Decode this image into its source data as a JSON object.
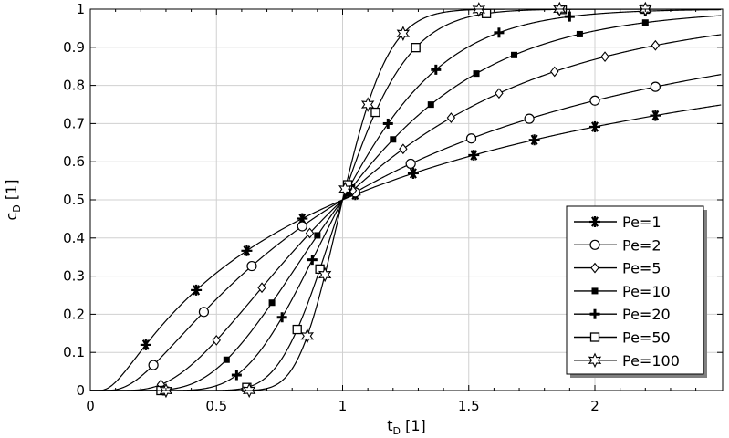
{
  "chart_data": {
    "type": "line",
    "xlabel": "t",
    "xlabel_sub": "D",
    "xlabel_unit": " [1]",
    "ylabel": "c",
    "ylabel_sub": "D",
    "ylabel_unit": " [1]",
    "xlim": [
      0,
      2.5
    ],
    "ylim": [
      0,
      1
    ],
    "x_ticks": [
      0,
      0.5,
      1,
      1.5,
      2
    ],
    "x_tick_labels": [
      "0",
      "0.5",
      "1",
      "1.5",
      "2"
    ],
    "y_ticks": [
      0,
      0.1,
      0.2,
      0.3,
      0.4,
      0.5,
      0.6,
      0.7,
      0.8,
      0.9,
      1
    ],
    "y_tick_labels": [
      "0",
      "0.1",
      "0.2",
      "0.3",
      "0.4",
      "0.5",
      "0.6",
      "0.7",
      "0.8",
      "0.9",
      "1"
    ],
    "grid": true,
    "legend_position": "bottom-right",
    "series": [
      {
        "name": "Pe=1",
        "pe": 1,
        "marker": "asterisk",
        "marker_x": [
          0.22,
          0.42,
          0.62,
          0.84,
          1.05,
          1.28,
          1.52,
          1.76,
          2.0,
          2.24
        ]
      },
      {
        "name": "Pe=2",
        "pe": 2,
        "marker": "circle",
        "marker_x": [
          0.25,
          0.45,
          0.64,
          0.84,
          1.05,
          1.27,
          1.51,
          1.74,
          2.0,
          2.24
        ]
      },
      {
        "name": "Pe=5",
        "pe": 5,
        "marker": "diamond",
        "marker_x": [
          0.28,
          0.5,
          0.68,
          0.87,
          1.04,
          1.24,
          1.43,
          1.62,
          1.84,
          2.04,
          2.24
        ]
      },
      {
        "name": "Pe=10",
        "pe": 10,
        "marker": "square-filled",
        "marker_x": [
          0.3,
          0.54,
          0.72,
          0.9,
          1.02,
          1.2,
          1.35,
          1.53,
          1.68,
          1.94,
          2.2
        ]
      },
      {
        "name": "Pe=20",
        "pe": 20,
        "marker": "plus",
        "marker_x": [
          0.29,
          0.58,
          0.76,
          0.88,
          1.03,
          1.18,
          1.37,
          1.62,
          1.9,
          2.2
        ]
      },
      {
        "name": "Pe=50",
        "pe": 50,
        "marker": "square",
        "marker_x": [
          0.28,
          0.62,
          0.82,
          0.91,
          1.02,
          1.13,
          1.29,
          1.57,
          1.87,
          2.2
        ]
      },
      {
        "name": "Pe=100",
        "pe": 100,
        "marker": "star",
        "marker_x": [
          0.3,
          0.63,
          0.86,
          0.93,
          1.01,
          1.1,
          1.24,
          1.54,
          1.86,
          2.2
        ]
      }
    ]
  }
}
